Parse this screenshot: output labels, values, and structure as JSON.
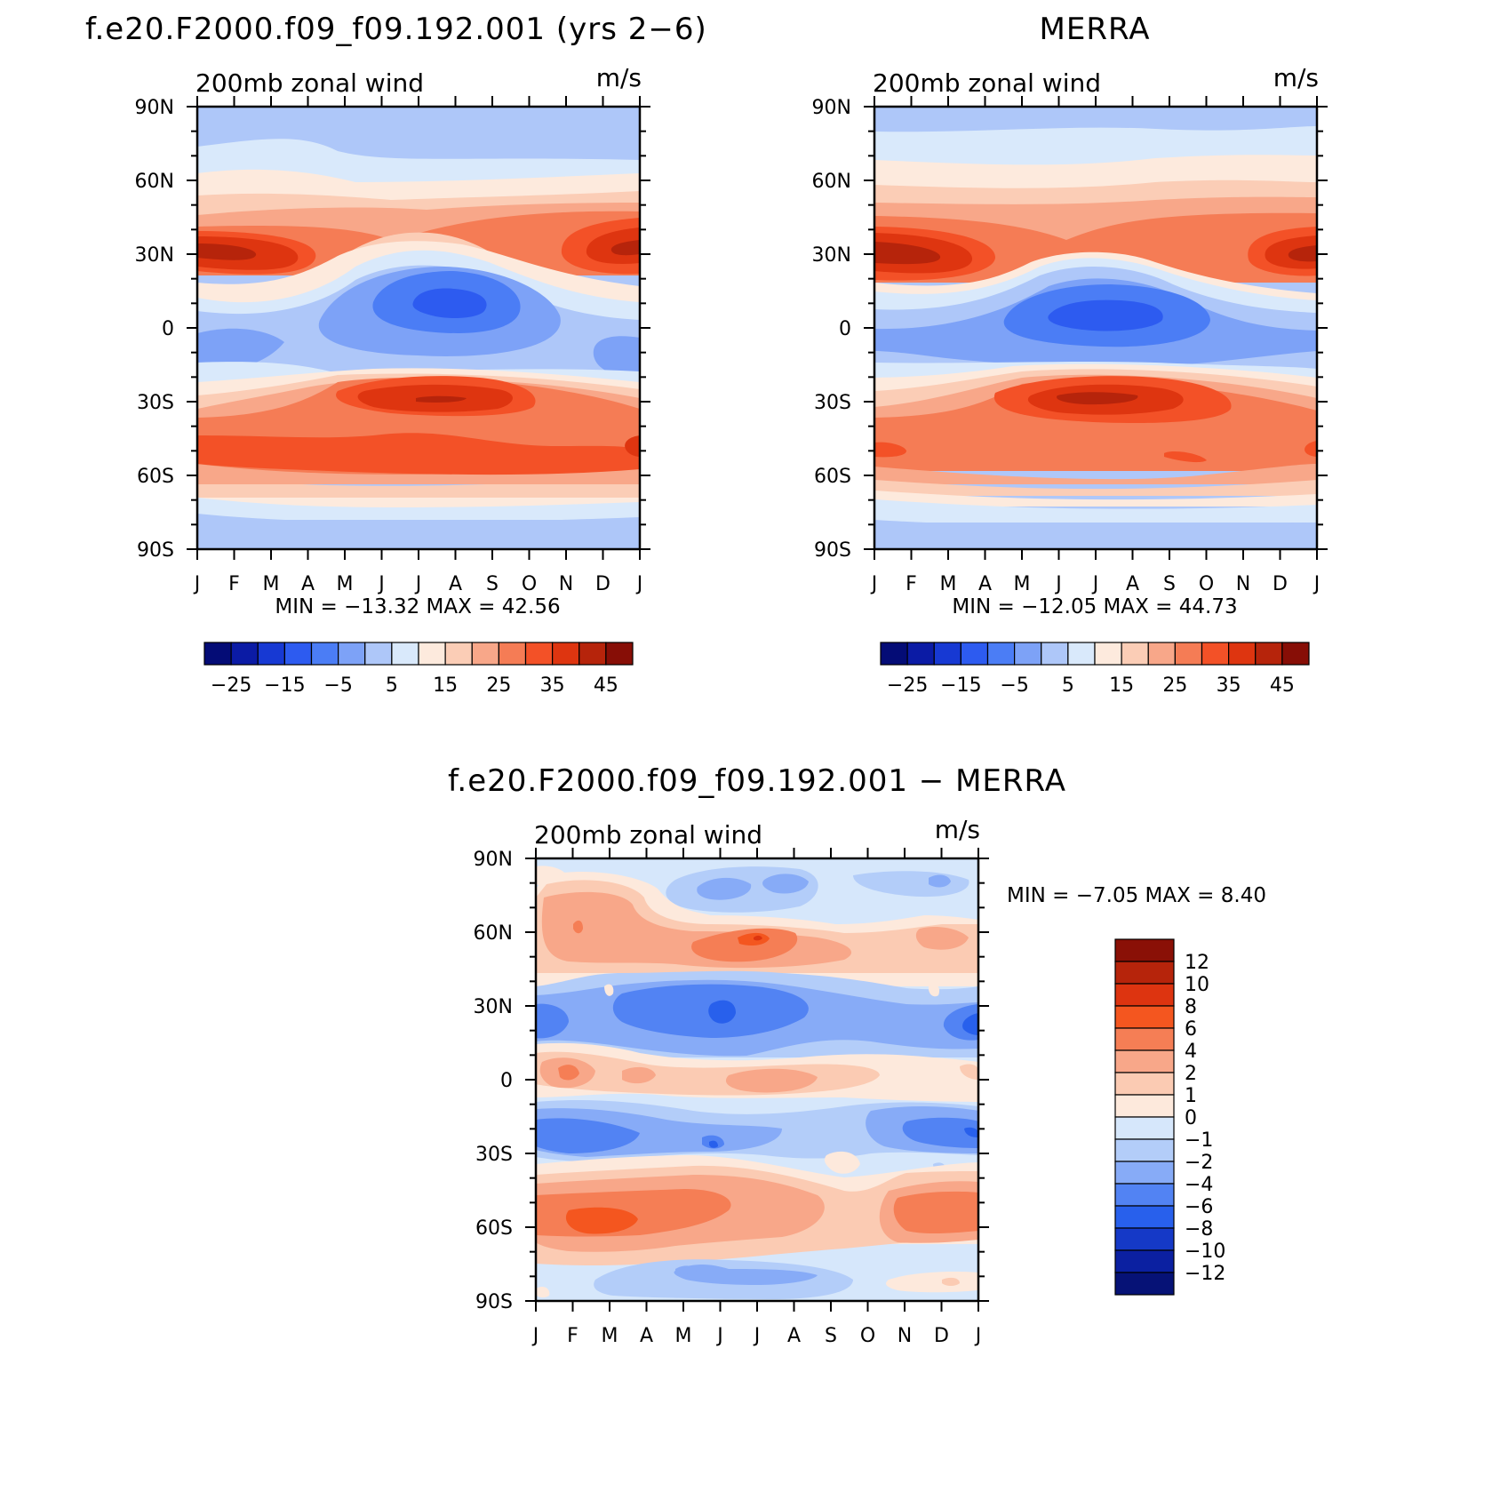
{
  "chart_data": [
    {
      "type": "heatmap",
      "title": "f.e20.F2000.f09_f09.192.001 (yrs 2−6)",
      "label_left": "200mb zonal wind",
      "label_right": "m/s",
      "x_tick_labels": [
        "J",
        "F",
        "M",
        "A",
        "M",
        "J",
        "J",
        "A",
        "S",
        "O",
        "N",
        "D",
        "J"
      ],
      "y_tick_labels": [
        "90N",
        "60N",
        "30N",
        "0",
        "30S",
        "60S",
        "90S"
      ],
      "y_ticks": [
        90,
        60,
        30,
        0,
        -30,
        -60,
        -90
      ],
      "ylim": [
        -90,
        90
      ],
      "stats": "MIN = −13.32 MAX = 42.56",
      "contour_levels": [
        -30,
        -25,
        -20,
        -15,
        -10,
        -5,
        0,
        5,
        10,
        15,
        20,
        25,
        30,
        35,
        40,
        45
      ],
      "colorbar_labels": [
        "−25",
        "−15",
        "−5",
        "5",
        "15",
        "25",
        "35",
        "45"
      ],
      "colorbar_values": [
        -25,
        -15,
        -5,
        5,
        15,
        25,
        35,
        45
      ],
      "features": [
        {
          "month": 1.0,
          "lat": 31,
          "value": 42
        },
        {
          "month": 12.4,
          "lat": 31,
          "value": 40
        },
        {
          "month": 7.0,
          "lat": 8,
          "value": -13
        },
        {
          "month": 7.0,
          "lat": -30,
          "value": 41
        },
        {
          "month": 1.0,
          "lat": -50,
          "value": 33
        },
        {
          "month": 12.5,
          "lat": -48,
          "value": 35
        }
      ]
    },
    {
      "type": "heatmap",
      "title": "MERRA",
      "label_left": "200mb zonal wind",
      "label_right": "m/s",
      "x_tick_labels": [
        "J",
        "F",
        "M",
        "A",
        "M",
        "J",
        "J",
        "A",
        "S",
        "O",
        "N",
        "D",
        "J"
      ],
      "y_tick_labels": [
        "90N",
        "60N",
        "30N",
        "0",
        "30S",
        "60S",
        "90S"
      ],
      "y_ticks": [
        90,
        60,
        30,
        0,
        -30,
        -60,
        -90
      ],
      "ylim": [
        -90,
        90
      ],
      "stats": "MIN = −12.05 MAX = 44.73",
      "contour_levels": [
        -30,
        -25,
        -20,
        -15,
        -10,
        -5,
        0,
        5,
        10,
        15,
        20,
        25,
        30,
        35,
        40,
        45
      ],
      "colorbar_labels": [
        "−25",
        "−15",
        "−5",
        "5",
        "15",
        "25",
        "35",
        "45"
      ],
      "colorbar_values": [
        -25,
        -15,
        -5,
        5,
        15,
        25,
        35,
        45
      ],
      "features": [
        {
          "month": 1.0,
          "lat": 30,
          "value": 44
        },
        {
          "month": 12.5,
          "lat": 31,
          "value": 42
        },
        {
          "month": 7.0,
          "lat": 6,
          "value": -12
        },
        {
          "month": 7.0,
          "lat": -29,
          "value": 42
        },
        {
          "month": 1.0,
          "lat": -47,
          "value": 30
        }
      ]
    },
    {
      "type": "heatmap",
      "title": "f.e20.F2000.f09_f09.192.001 − MERRA",
      "label_left": "200mb zonal wind",
      "label_right": "m/s",
      "x_tick_labels": [
        "J",
        "F",
        "M",
        "A",
        "M",
        "J",
        "J",
        "A",
        "S",
        "O",
        "N",
        "D",
        "J"
      ],
      "y_tick_labels": [
        "90N",
        "60N",
        "30N",
        "0",
        "30S",
        "60S",
        "90S"
      ],
      "y_ticks": [
        90,
        60,
        30,
        0,
        -30,
        -60,
        -90
      ],
      "ylim": [
        -90,
        90
      ],
      "stats": "MIN = −7.05 MAX = 8.40",
      "contour_levels": [
        -12,
        -10,
        -8,
        -6,
        -4,
        -2,
        -1,
        0,
        1,
        2,
        4,
        6,
        8,
        10,
        12
      ],
      "colorbar_labels": [
        "12",
        "10",
        "8",
        "6",
        "4",
        "2",
        "1",
        "0",
        "−1",
        "−2",
        "−4",
        "−6",
        "−8",
        "−10",
        "−12"
      ],
      "colorbar_values": [
        12,
        10,
        8,
        6,
        4,
        2,
        1,
        0,
        -1,
        -2,
        -4,
        -6,
        -8,
        -10,
        -12
      ],
      "features": [
        {
          "month": 7.0,
          "lat": 57,
          "value": 8
        },
        {
          "month": 2.0,
          "lat": 62,
          "value": 5
        },
        {
          "month": 6.0,
          "lat": 33,
          "value": -7
        },
        {
          "month": 12.6,
          "lat": 23,
          "value": -6
        },
        {
          "month": 2.0,
          "lat": 3,
          "value": 4
        },
        {
          "month": 6.0,
          "lat": -28,
          "value": -5
        },
        {
          "month": 12.4,
          "lat": -20,
          "value": -6
        },
        {
          "month": 2.5,
          "lat": -57,
          "value": 6
        },
        {
          "month": 12.3,
          "lat": -57,
          "value": 5
        }
      ]
    }
  ],
  "colors": {
    "model_scale": [
      "#040c76",
      "#0b1ba5",
      "#1739d3",
      "#2d5bf0",
      "#4b7df5",
      "#7da2f7",
      "#aec7f9",
      "#d9e9fb",
      "#fdeadd",
      "#fbcdb6",
      "#f8a789",
      "#f57c55",
      "#f35127",
      "#de3510",
      "#b6240b",
      "#870e06"
    ],
    "diff_scale": [
      "#8a1006",
      "#b6240b",
      "#dd3410",
      "#f4561f",
      "#f57e55",
      "#f8a789",
      "#fbcbb3",
      "#fde9dc",
      "#d6e7fb",
      "#b3cdf9",
      "#87abf7",
      "#5283f3",
      "#2860ec",
      "#1539c7",
      "#0b20a1",
      "#061276"
    ]
  }
}
